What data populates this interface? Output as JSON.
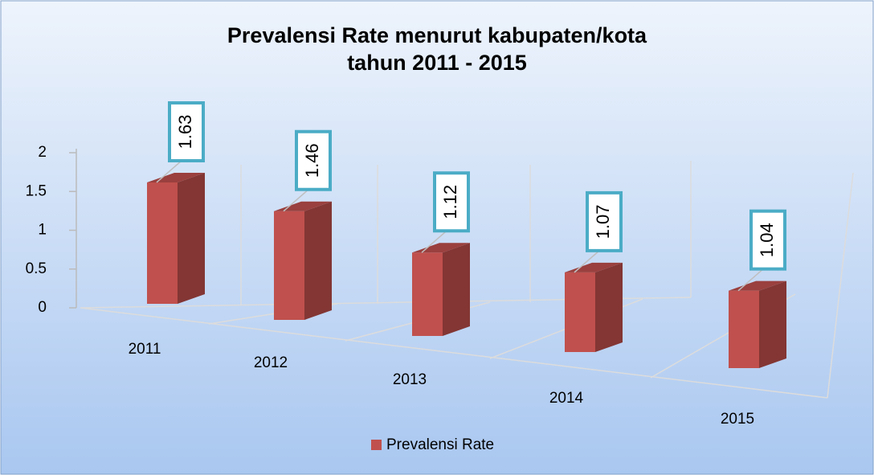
{
  "chart_data": {
    "type": "bar3d",
    "title": [
      "Prevalensi Rate menurut kabupaten/kota",
      "tahun 2011 - 2015"
    ],
    "categories": [
      "2011",
      "2012",
      "2013",
      "2014",
      "2015"
    ],
    "series": [
      {
        "name": "Prevalensi Rate",
        "color": "#c0504d",
        "values": [
          1.63,
          1.46,
          1.12,
          1.07,
          1.04
        ]
      }
    ],
    "ylim": [
      0,
      2
    ],
    "yticks": [
      0,
      0.5,
      1,
      1.5,
      2
    ],
    "legend": "bottom"
  }
}
